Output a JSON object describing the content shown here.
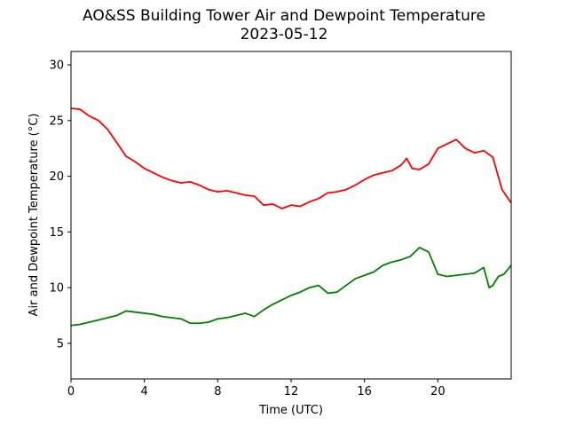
{
  "chart_data": {
    "type": "line",
    "title": "AO&SS Building Tower Air and Dewpoint Temperature",
    "subtitle": "2023-05-12",
    "xlabel": "Time (UTC)",
    "ylabel": "Air and Dewpoint Temperature (°C)",
    "xlim": [
      0,
      24
    ],
    "ylim": [
      1.8,
      31.2
    ],
    "xticks": [
      0,
      4,
      8,
      12,
      16,
      20
    ],
    "yticks": [
      5,
      10,
      15,
      20,
      25,
      30
    ],
    "grid": false,
    "series": [
      {
        "color": "#ff0000",
        "x": [
          0,
          0.5,
          1,
          1.5,
          2,
          2.5,
          3,
          3.5,
          4,
          4.5,
          5,
          5.5,
          6,
          6.5,
          7,
          7.5,
          8,
          8.5,
          9,
          9.5,
          10,
          10.5,
          11,
          11.5,
          12,
          12.5,
          13,
          13.5,
          14,
          14.5,
          15,
          15.5,
          16,
          16.5,
          17,
          17.5,
          18,
          18.3,
          18.6,
          19,
          19.5,
          20,
          20.5,
          21,
          21.5,
          22,
          22.5,
          23,
          23.5,
          24
        ],
        "values": [
          26.1,
          26.0,
          25.4,
          25.0,
          24.2,
          23.0,
          21.8,
          21.3,
          20.7,
          20.3,
          19.9,
          19.6,
          19.4,
          19.5,
          19.2,
          18.8,
          18.6,
          18.7,
          18.5,
          18.3,
          18.2,
          17.4,
          17.5,
          17.1,
          17.4,
          17.3,
          17.7,
          18.0,
          18.5,
          18.6,
          18.8,
          19.2,
          19.7,
          20.1,
          20.3,
          20.5,
          21.0,
          21.6,
          20.7,
          20.6,
          21.1,
          22.5,
          22.9,
          23.3,
          22.5,
          22.1,
          22.3,
          21.7,
          18.8,
          17.6
        ]
      },
      {
        "color": "#008000",
        "x": [
          0,
          0.5,
          1,
          1.5,
          2,
          2.5,
          3,
          3.5,
          4,
          4.5,
          5,
          5.5,
          6,
          6.5,
          7,
          7.5,
          8,
          8.5,
          9,
          9.5,
          10,
          10.5,
          11,
          11.5,
          12,
          12.5,
          13,
          13.5,
          14,
          14.5,
          15,
          15.5,
          16,
          16.5,
          17,
          17.5,
          18,
          18.5,
          19,
          19.5,
          20,
          20.5,
          21,
          21.5,
          22,
          22.5,
          22.8,
          23,
          23.3,
          23.6,
          24
        ],
        "values": [
          6.6,
          6.7,
          6.9,
          7.1,
          7.3,
          7.5,
          7.9,
          7.8,
          7.7,
          7.6,
          7.4,
          7.3,
          7.2,
          6.8,
          6.8,
          6.9,
          7.2,
          7.3,
          7.5,
          7.7,
          7.4,
          8.0,
          8.5,
          8.9,
          9.3,
          9.6,
          10.0,
          10.2,
          9.5,
          9.6,
          10.2,
          10.8,
          11.1,
          11.4,
          12.0,
          12.3,
          12.5,
          12.8,
          13.6,
          13.2,
          11.2,
          11.0,
          11.1,
          11.2,
          11.3,
          11.8,
          10.0,
          10.2,
          11.0,
          11.2,
          12.0
        ]
      }
    ]
  }
}
